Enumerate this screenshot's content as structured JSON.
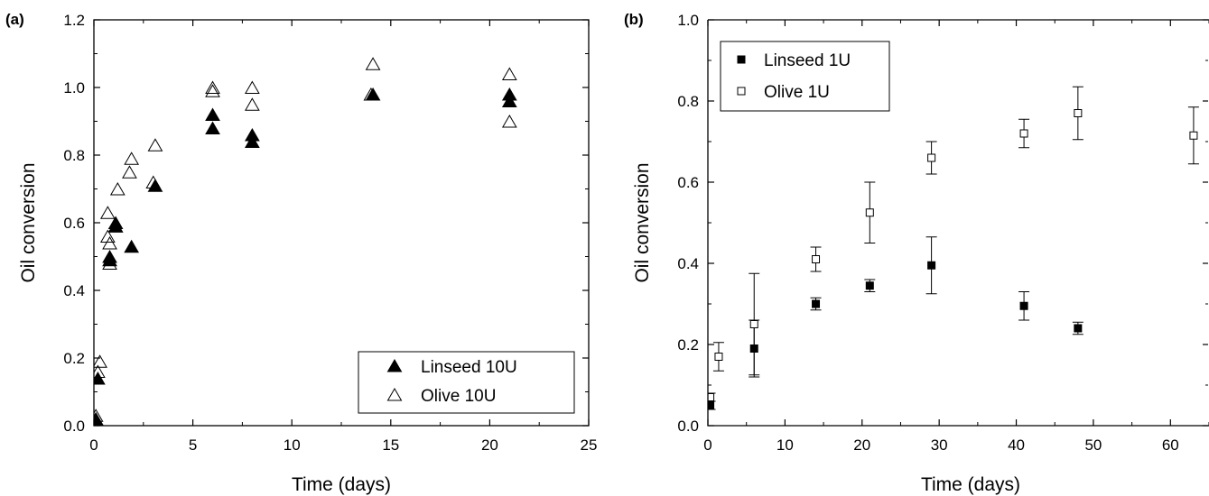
{
  "chart_data": [
    {
      "panel_label": "(a)",
      "type": "scatter",
      "xlabel": "Time (days)",
      "ylabel": "Oil conversion",
      "xlim": [
        0,
        25
      ],
      "ylim": [
        0,
        1.2
      ],
      "xticks": [
        0,
        5,
        10,
        15,
        20,
        25
      ],
      "xtick_labels": [
        "0",
        "5",
        "10",
        "15",
        "20",
        "25"
      ],
      "yticks": [
        0,
        0.2,
        0.4,
        0.6,
        0.8,
        1.0,
        1.2
      ],
      "ytick_labels": [
        "0.0",
        "0.2",
        "0.4",
        "0.6",
        "0.8",
        "1.0",
        "1.2"
      ],
      "legend_position": "bottom-right",
      "series": [
        {
          "name": "Linseed 10U",
          "marker": "filled-triangle",
          "color": "#000000",
          "x": [
            0.1,
            0.2,
            0.8,
            0.8,
            1.1,
            1.1,
            1.9,
            3.1,
            6.0,
            6.0,
            8.0,
            8.0,
            14.1,
            21.0,
            21.0
          ],
          "y": [
            0.02,
            0.14,
            0.49,
            0.5,
            0.59,
            0.6,
            0.53,
            0.71,
            0.88,
            0.92,
            0.84,
            0.86,
            0.98,
            0.96,
            0.98
          ]
        },
        {
          "name": "Olive 10U",
          "marker": "open-triangle",
          "color": "#000000",
          "x": [
            0.1,
            0.1,
            0.2,
            0.3,
            0.7,
            0.7,
            0.8,
            0.8,
            1.1,
            1.2,
            1.8,
            1.9,
            3.0,
            3.1,
            6.0,
            6.0,
            8.0,
            8.0,
            14.0,
            14.1,
            21.0,
            21.0
          ],
          "y": [
            0.02,
            0.03,
            0.16,
            0.19,
            0.63,
            0.56,
            0.54,
            0.48,
            0.59,
            0.7,
            0.75,
            0.79,
            0.72,
            0.83,
            0.99,
            1.0,
            0.95,
            1.0,
            0.98,
            1.07,
            0.9,
            1.04
          ]
        }
      ]
    },
    {
      "panel_label": "(b)",
      "type": "scatter",
      "xlabel": "Time (days)",
      "ylabel": "Oil conversion",
      "xlim": [
        0,
        65
      ],
      "ylim": [
        0,
        1.0
      ],
      "xticks": [
        0,
        10,
        20,
        30,
        40,
        50,
        60
      ],
      "xtick_labels": [
        "0",
        "10",
        "20",
        "30",
        "40",
        "50",
        "60"
      ],
      "yticks": [
        0,
        0.2,
        0.4,
        0.6,
        0.8,
        1.0
      ],
      "ytick_labels": [
        "0.0",
        "0.2",
        "0.4",
        "0.6",
        "0.8",
        "1.0"
      ],
      "legend_position": "top-left",
      "series": [
        {
          "name": "Linseed 1U",
          "marker": "filled-square",
          "color": "#000000",
          "x": [
            0.3,
            6,
            14,
            21,
            29,
            41,
            48
          ],
          "y": [
            0.05,
            0.19,
            0.3,
            0.345,
            0.395,
            0.295,
            0.24
          ],
          "err": [
            0.01,
            0.07,
            0.015,
            0.015,
            0.07,
            0.035,
            0.015
          ]
        },
        {
          "name": "Olive 1U",
          "marker": "open-square",
          "color": "#000000",
          "x": [
            0.3,
            1.4,
            6,
            14,
            21,
            29,
            41,
            48,
            63
          ],
          "y": [
            0.07,
            0.17,
            0.25,
            0.41,
            0.525,
            0.66,
            0.72,
            0.77,
            0.715
          ],
          "err": [
            0.01,
            0.035,
            0.125,
            0.03,
            0.075,
            0.04,
            0.035,
            0.065,
            0.07
          ]
        }
      ]
    }
  ]
}
